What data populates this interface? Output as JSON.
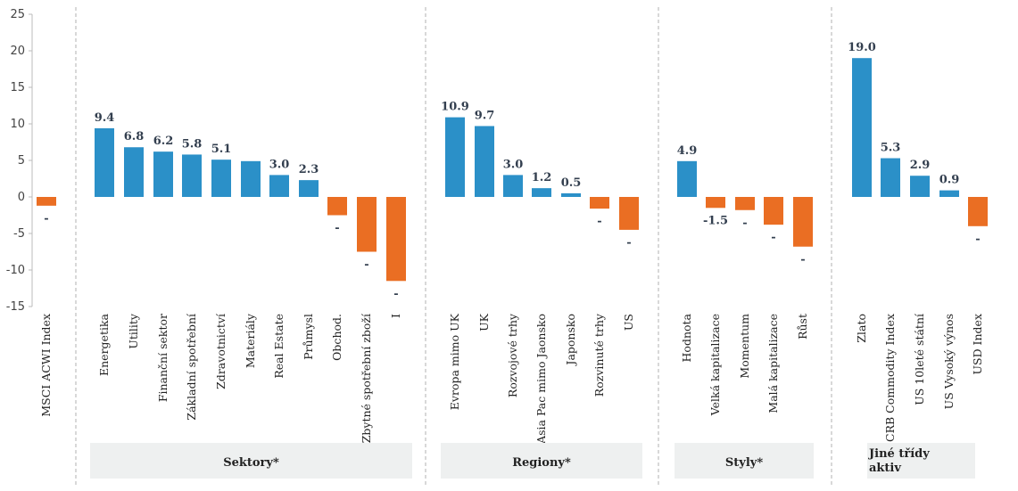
{
  "chart_data": {
    "type": "bar",
    "ylim": [
      -15,
      25
    ],
    "yticks": [
      -15,
      -10,
      -5,
      0,
      5,
      10,
      15,
      20,
      25
    ],
    "ytick_labels": [
      "-15",
      "-10",
      "-5",
      "0",
      "5",
      "10",
      "15",
      "20",
      "25"
    ],
    "grid": false,
    "colors": {
      "positive": "#2b90c8",
      "negative": "#ea6e23",
      "group_box": "#eef0f0",
      "divider": "#b0b0b0"
    },
    "categories": [
      {
        "label": "MSCI ACWI Index",
        "value": -1.2,
        "data_label": "-"
      },
      {
        "label": "Energetika",
        "value": 9.4,
        "data_label": "9.4"
      },
      {
        "label": "Utility",
        "value": 6.8,
        "data_label": "6.8"
      },
      {
        "label": "Finanční sektor",
        "value": 6.2,
        "data_label": "6.2"
      },
      {
        "label": "Základní spotřební",
        "value": 5.8,
        "data_label": "5.8"
      },
      {
        "label": "Zdravotnictví",
        "value": 5.1,
        "data_label": "5.1"
      },
      {
        "label": "Materiály",
        "value": 4.9,
        "data_label": ""
      },
      {
        "label": "Real Estate",
        "value": 3.0,
        "data_label": "3.0"
      },
      {
        "label": "Průmysl",
        "value": 2.3,
        "data_label": "2.3"
      },
      {
        "label": "Obchod.",
        "value": -2.5,
        "data_label": "-"
      },
      {
        "label": "Zbytné spotřební zboží",
        "value": -7.5,
        "data_label": "-"
      },
      {
        "label": "I",
        "value": -11.5,
        "data_label": "-"
      },
      {
        "label": "Evropa mimo UK",
        "value": 10.9,
        "data_label": "10.9"
      },
      {
        "label": "UK",
        "value": 9.7,
        "data_label": "9.7"
      },
      {
        "label": "Rozvojové trhy",
        "value": 3.0,
        "data_label": "3.0"
      },
      {
        "label": "Asia Pac mimo Jaonsko",
        "value": 1.2,
        "data_label": "1.2"
      },
      {
        "label": "Japonsko",
        "value": 0.5,
        "data_label": "0.5"
      },
      {
        "label": "Rozvinuté trhy",
        "value": -1.6,
        "data_label": "-"
      },
      {
        "label": "US",
        "value": -4.5,
        "data_label": "-"
      },
      {
        "label": "Hodnota",
        "value": 4.9,
        "data_label": "4.9"
      },
      {
        "label": "Velká kapitalizace",
        "value": -1.5,
        "data_label": "-1.5"
      },
      {
        "label": "Momentum",
        "value": -1.8,
        "data_label": "-"
      },
      {
        "label": "Malá kapitalizace",
        "value": -3.8,
        "data_label": "-"
      },
      {
        "label": "Růst",
        "value": -6.8,
        "data_label": "-"
      },
      {
        "label": "Zlato",
        "value": 19.0,
        "data_label": "19.0"
      },
      {
        "label": "CRB Commodity Index",
        "value": 5.3,
        "data_label": "5.3"
      },
      {
        "label": "US 10leté státní",
        "value": 2.9,
        "data_label": "2.9"
      },
      {
        "label": "US Vysoký výnos",
        "value": 0.9,
        "data_label": "0.9"
      },
      {
        "label": "USD Index",
        "value": -4.0,
        "data_label": "-"
      }
    ],
    "groups": [
      {
        "name": "",
        "first": 0,
        "last": 0
      },
      {
        "name": "Sektory*",
        "first": 1,
        "last": 11
      },
      {
        "name": "Regiony*",
        "first": 12,
        "last": 18
      },
      {
        "name": "Styly*",
        "first": 19,
        "last": 23
      },
      {
        "name": "Jiné třídy aktiv",
        "first": 24,
        "last": 28
      }
    ]
  }
}
